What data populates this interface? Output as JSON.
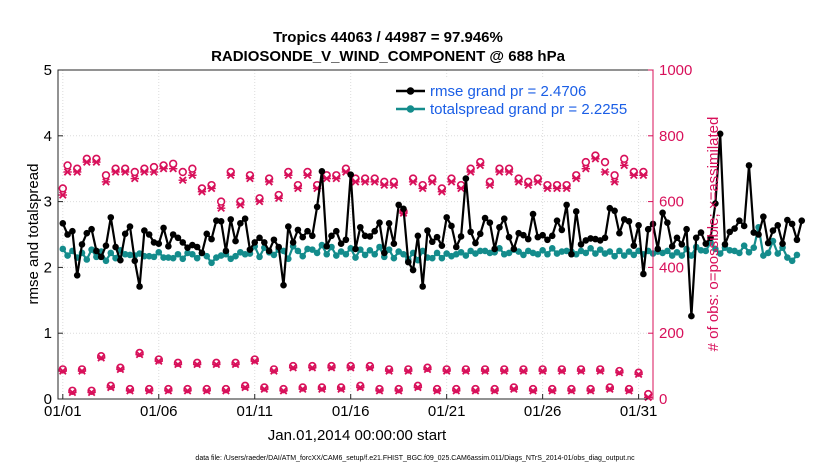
{
  "chart_data": {
    "type": "line",
    "title": "Tropics 44063 / 44987 = 97.946%",
    "subtitle": "RADIOSONDE_V_WIND_COMPONENT @ 688 hPa",
    "xlabel": "Jan.01,2014 00:00:00 start",
    "ylabel_left": "rmse and totalspread",
    "ylabel_right": "# of obs: o=possible; ×=assimilated",
    "footnote": "data file: /Users/raeder/DAI/ATM_forcXX/CAM6_setup/f.e21.FHIST_BGC.f09_025.CAM6assim.011/Diags_NTrS_2014-01/obs_diag_output.nc",
    "xlim": [
      0.75,
      31.75
    ],
    "ylim_left": [
      0,
      5
    ],
    "ylim_right": [
      0,
      1000
    ],
    "x_ticks": [
      1,
      6,
      11,
      16,
      21,
      26,
      31
    ],
    "x_tick_labels": [
      "01/01",
      "01/06",
      "01/11",
      "01/16",
      "01/21",
      "01/26",
      "01/31"
    ],
    "y_left_ticks": [
      0,
      1,
      2,
      3,
      4,
      5
    ],
    "y_left_tick_labels": [
      "0",
      "1",
      "2",
      "3",
      "4",
      "5"
    ],
    "y_right_ticks": [
      0,
      200,
      400,
      600,
      800,
      1000
    ],
    "y_right_tick_labels": [
      "0",
      "200",
      "400",
      "600",
      "800",
      "1000"
    ],
    "colors": {
      "rmse": "#000000",
      "spread": "#148c8c",
      "obs": "#d8105a",
      "legend_text": "#1a5ee6",
      "right_axis": "#d8105a"
    },
    "legend": [
      "rmse grand pr = 2.4706",
      "totalspread grand pr = 2.2255"
    ],
    "legend_position": "top-right",
    "series": [
      {
        "name": "rmse",
        "axis": "left",
        "start_day": 1,
        "step_days": 0.25,
        "values": [
          2.67,
          2.5,
          2.55,
          1.88,
          2.35,
          2.52,
          2.58,
          2.25,
          2.16,
          2.33,
          2.76,
          2.31,
          2.11,
          2.51,
          2.62,
          2.1,
          1.71,
          2.56,
          2.5,
          2.38,
          2.36,
          2.6,
          2.32,
          2.5,
          2.45,
          2.38,
          2.3,
          2.34,
          2.31,
          2.22,
          2.51,
          2.43,
          2.71,
          2.7,
          2.25,
          2.73,
          2.4,
          2.67,
          2.74,
          2.27,
          2.38,
          2.45,
          2.38,
          2.25,
          2.42,
          2.31,
          1.73,
          2.62,
          2.38,
          2.57,
          2.46,
          2.55,
          2.48,
          2.92,
          3.46,
          2.32,
          2.48,
          2.55,
          2.36,
          2.42,
          3.41,
          2.28,
          2.61,
          2.48,
          2.47,
          2.55,
          2.68,
          2.22,
          2.67,
          2.36,
          2.95,
          2.89,
          2.08,
          1.96,
          2.48,
          1.71,
          2.56,
          2.39,
          2.46,
          2.33,
          2.76,
          2.63,
          2.31,
          2.47,
          3.35,
          2.54,
          2.37,
          2.51,
          2.75,
          2.68,
          2.28,
          2.61,
          2.74,
          2.46,
          2.28,
          2.52,
          2.49,
          2.43,
          2.81,
          2.46,
          2.49,
          2.42,
          2.48,
          2.71,
          2.57,
          2.95,
          2.2,
          2.85,
          2.35,
          2.41,
          2.44,
          2.43,
          2.41,
          2.45,
          2.9,
          2.86,
          2.52,
          2.73,
          2.7,
          2.33,
          2.64,
          1.9,
          2.58,
          2.66,
          2.28,
          2.83,
          2.68,
          2.32,
          2.45,
          2.35,
          2.58,
          1.26,
          2.45,
          2.53,
          2.36,
          2.45,
          2.97,
          4.03,
          2.35,
          2.54,
          2.59,
          2.71,
          2.63,
          3.55,
          2.53,
          2.5,
          2.77,
          2.37,
          2.56,
          2.64,
          2.36,
          2.72,
          2.66,
          2.42,
          2.71
        ]
      },
      {
        "name": "totalspread",
        "axis": "left",
        "start_day": 1,
        "step_days": 0.25,
        "values": [
          2.28,
          2.18,
          2.25,
          2.15,
          2.22,
          2.12,
          2.27,
          2.16,
          2.24,
          2.1,
          2.22,
          2.14,
          2.26,
          2.2,
          2.19,
          2.18,
          2.21,
          2.17,
          2.17,
          2.16,
          2.23,
          2.15,
          2.15,
          2.14,
          2.2,
          2.13,
          2.22,
          2.2,
          2.14,
          2.22,
          2.17,
          2.07,
          2.15,
          2.18,
          2.2,
          2.13,
          2.17,
          2.23,
          2.2,
          2.21,
          2.32,
          2.16,
          2.3,
          2.23,
          2.19,
          2.27,
          2.25,
          2.13,
          2.32,
          2.25,
          2.17,
          2.28,
          2.27,
          2.22,
          2.34,
          2.2,
          2.31,
          2.18,
          2.24,
          2.2,
          2.29,
          2.15,
          2.27,
          2.19,
          2.26,
          2.2,
          2.31,
          2.16,
          2.27,
          2.14,
          2.24,
          2.2,
          2.12,
          2.22,
          2.11,
          2.25,
          2.15,
          2.14,
          2.22,
          2.14,
          2.21,
          2.17,
          2.2,
          2.23,
          2.18,
          2.25,
          2.21,
          2.25,
          2.25,
          2.22,
          2.23,
          2.29,
          2.2,
          2.22,
          2.27,
          2.24,
          2.19,
          2.25,
          2.22,
          2.2,
          2.26,
          2.2,
          2.29,
          2.21,
          2.24,
          2.25,
          2.24,
          2.2,
          2.25,
          2.22,
          2.29,
          2.21,
          2.27,
          2.21,
          2.24,
          2.17,
          2.25,
          2.18,
          2.24,
          2.19,
          2.25,
          2.2,
          2.25,
          2.21,
          2.24,
          2.22,
          2.25,
          2.18,
          2.23,
          2.18,
          2.28,
          2.18,
          2.31,
          2.26,
          2.25,
          2.38,
          2.28,
          2.21,
          2.3,
          2.26,
          2.25,
          2.22,
          2.33,
          2.23,
          2.3,
          2.61,
          2.18,
          2.22,
          2.4,
          2.21,
          2.3,
          2.15,
          2.1,
          2.19
        ]
      }
    ],
    "obs_possible_high": {
      "x": [
        1,
        1.25,
        1.75,
        2.25,
        2.75,
        3.25,
        3.75,
        4.25,
        4.75,
        5.25,
        5.75,
        6.25,
        6.75,
        7.25,
        7.75,
        8.25,
        8.75,
        9.25,
        9.75,
        10.25,
        10.75,
        11.25,
        11.75,
        12.25,
        12.75,
        13.25,
        13.75,
        14.25,
        14.75,
        15.25,
        15.75,
        16.25,
        16.75,
        17.25,
        17.75,
        18.25,
        18.75,
        19.25,
        19.75,
        20.25,
        20.75,
        21.25,
        21.75,
        22.25,
        22.75,
        23.25,
        23.75,
        24.25,
        24.75,
        25.25,
        25.75,
        26.25,
        26.75,
        27.25,
        27.75,
        28.25,
        28.75,
        29.25,
        29.75,
        30.25,
        30.75,
        31.25
      ],
      "values": [
        640,
        710,
        700,
        730,
        730,
        680,
        700,
        700,
        690,
        700,
        705,
        710,
        715,
        690,
        700,
        640,
        650,
        600,
        690,
        600,
        680,
        610,
        670,
        620,
        690,
        650,
        690,
        650,
        680,
        680,
        700,
        670,
        670,
        670,
        660,
        660,
        570,
        670,
        650,
        670,
        640,
        670,
        650,
        700,
        720,
        660,
        700,
        700,
        670,
        660,
        670,
        650,
        650,
        650,
        680,
        720,
        740,
        720,
        680,
        730,
        690,
        690
      ]
    },
    "obs_assimilated_high": {
      "x": [
        1,
        1.25,
        1.75,
        2.25,
        2.75,
        3.25,
        3.75,
        4.25,
        4.75,
        5.25,
        5.75,
        6.25,
        6.75,
        7.25,
        7.75,
        8.25,
        8.75,
        9.25,
        9.75,
        10.25,
        10.75,
        11.25,
        11.75,
        12.25,
        12.75,
        13.25,
        13.75,
        14.25,
        14.75,
        15.25,
        15.75,
        16.25,
        16.75,
        17.25,
        17.75,
        18.25,
        18.75,
        19.25,
        19.75,
        20.25,
        20.75,
        21.25,
        21.75,
        22.25,
        22.75,
        23.25,
        23.75,
        24.25,
        24.75,
        25.25,
        25.75,
        26.25,
        26.75,
        27.25,
        27.75,
        28.25,
        28.75,
        29.25,
        29.75,
        30.25,
        30.75,
        31.25
      ],
      "values": [
        620,
        690,
        690,
        720,
        720,
        660,
        690,
        690,
        670,
        690,
        690,
        700,
        700,
        665,
        680,
        630,
        640,
        580,
        680,
        590,
        670,
        600,
        660,
        610,
        680,
        640,
        680,
        640,
        670,
        670,
        690,
        660,
        660,
        660,
        650,
        650,
        565,
        660,
        640,
        660,
        630,
        660,
        640,
        690,
        710,
        650,
        690,
        690,
        660,
        650,
        660,
        640,
        640,
        640,
        670,
        700,
        730,
        690,
        660,
        710,
        680,
        680
      ]
    },
    "obs_possible_low": {
      "x": [
        1,
        1.5,
        2,
        2.5,
        3,
        3.5,
        4,
        4.5,
        5,
        5.5,
        6,
        6.5,
        7,
        7.5,
        8,
        8.5,
        9,
        9.5,
        10,
        10.5,
        11,
        11.5,
        12,
        12.5,
        13,
        13.5,
        14,
        14.5,
        15,
        15.5,
        16,
        16.5,
        17,
        17.5,
        18,
        18.5,
        19,
        19.5,
        20,
        20.5,
        21,
        21.5,
        22,
        22.5,
        23,
        23.5,
        24,
        24.5,
        25,
        25.5,
        26,
        26.5,
        27,
        27.5,
        28,
        28.5,
        29,
        29.5,
        30,
        30.5,
        31,
        31.5
      ],
      "values": [
        90,
        25,
        90,
        25,
        130,
        40,
        95,
        30,
        140,
        30,
        120,
        30,
        110,
        30,
        110,
        30,
        110,
        30,
        110,
        40,
        120,
        35,
        90,
        30,
        100,
        35,
        100,
        35,
        100,
        35,
        100,
        40,
        100,
        30,
        90,
        30,
        90,
        40,
        95,
        30,
        90,
        30,
        90,
        30,
        90,
        30,
        90,
        35,
        90,
        30,
        90,
        30,
        90,
        30,
        90,
        30,
        90,
        35,
        85,
        30,
        80,
        15
      ]
    },
    "obs_assimilated_low": {
      "x": [
        1,
        1.5,
        2,
        2.5,
        3,
        3.5,
        4,
        4.5,
        5,
        5.5,
        6,
        6.5,
        7,
        7.5,
        8,
        8.5,
        9,
        9.5,
        10,
        10.5,
        11,
        11.5,
        12,
        12.5,
        13,
        13.5,
        14,
        14.5,
        15,
        15.5,
        16,
        16.5,
        17,
        17.5,
        18,
        18.5,
        19,
        19.5,
        20,
        20.5,
        21,
        21.5,
        22,
        22.5,
        23,
        23.5,
        24,
        24.5,
        25,
        25.5,
        26,
        26.5,
        27,
        27.5,
        28,
        28.5,
        29,
        29.5,
        30,
        30.5,
        31,
        31.5
      ],
      "values": [
        85,
        20,
        85,
        20,
        125,
        35,
        90,
        25,
        135,
        25,
        115,
        25,
        105,
        25,
        105,
        25,
        105,
        25,
        105,
        35,
        115,
        30,
        85,
        25,
        95,
        30,
        95,
        30,
        95,
        30,
        95,
        35,
        95,
        25,
        85,
        25,
        85,
        35,
        90,
        25,
        85,
        25,
        85,
        25,
        85,
        25,
        85,
        30,
        85,
        25,
        85,
        25,
        85,
        25,
        85,
        25,
        85,
        30,
        80,
        25,
        75,
        5
      ]
    }
  }
}
